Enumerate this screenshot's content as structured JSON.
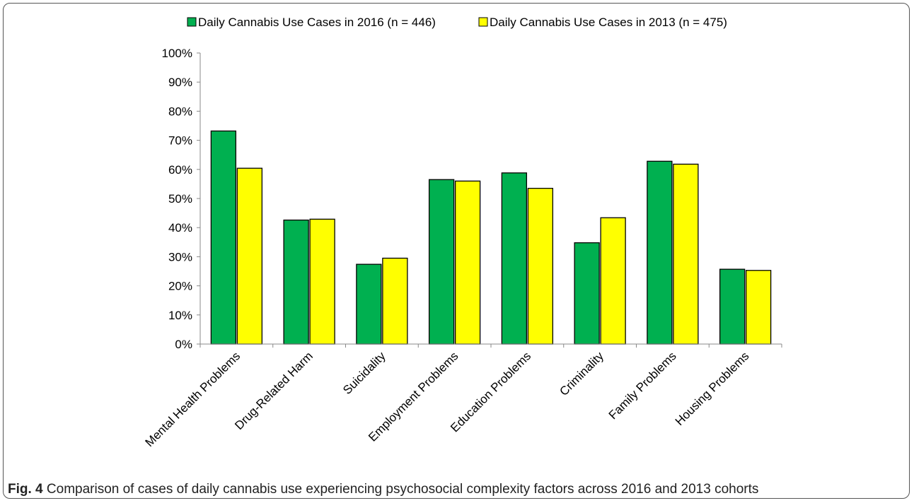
{
  "figure": {
    "label": "Fig. 4",
    "caption": "Comparison of cases of daily cannabis use experiencing psychosocial complexity factors across 2016 and 2013 cohorts"
  },
  "colors": {
    "series_2016": "#00b050",
    "series_2013": "#ffff00",
    "outline": "#000000"
  },
  "chart_data": {
    "type": "bar",
    "title": "",
    "xlabel": "",
    "ylabel": "",
    "ylim": [
      0,
      100
    ],
    "y_ticks": [
      "0%",
      "10%",
      "20%",
      "30%",
      "40%",
      "50%",
      "60%",
      "70%",
      "80%",
      "90%",
      "100%"
    ],
    "grid": false,
    "legend_position": "top",
    "categories": [
      "Mental Health Problems",
      "Drug-Related Harm",
      "Suicidality",
      "Employment Problems",
      "Education Problems",
      "Criminality",
      "Family Problems",
      "Housing Problems"
    ],
    "series": [
      {
        "name": "Daily Cannabis Use Cases in 2016 (n = 446)",
        "color": "#00b050",
        "values": [
          73.2,
          42.6,
          27.4,
          56.5,
          58.8,
          34.8,
          62.8,
          25.7
        ]
      },
      {
        "name": "Daily Cannabis Use Cases in 2013 (n = 475)",
        "color": "#ffff00",
        "values": [
          60.4,
          42.9,
          29.5,
          56.0,
          53.5,
          43.4,
          61.8,
          25.3
        ]
      }
    ]
  }
}
